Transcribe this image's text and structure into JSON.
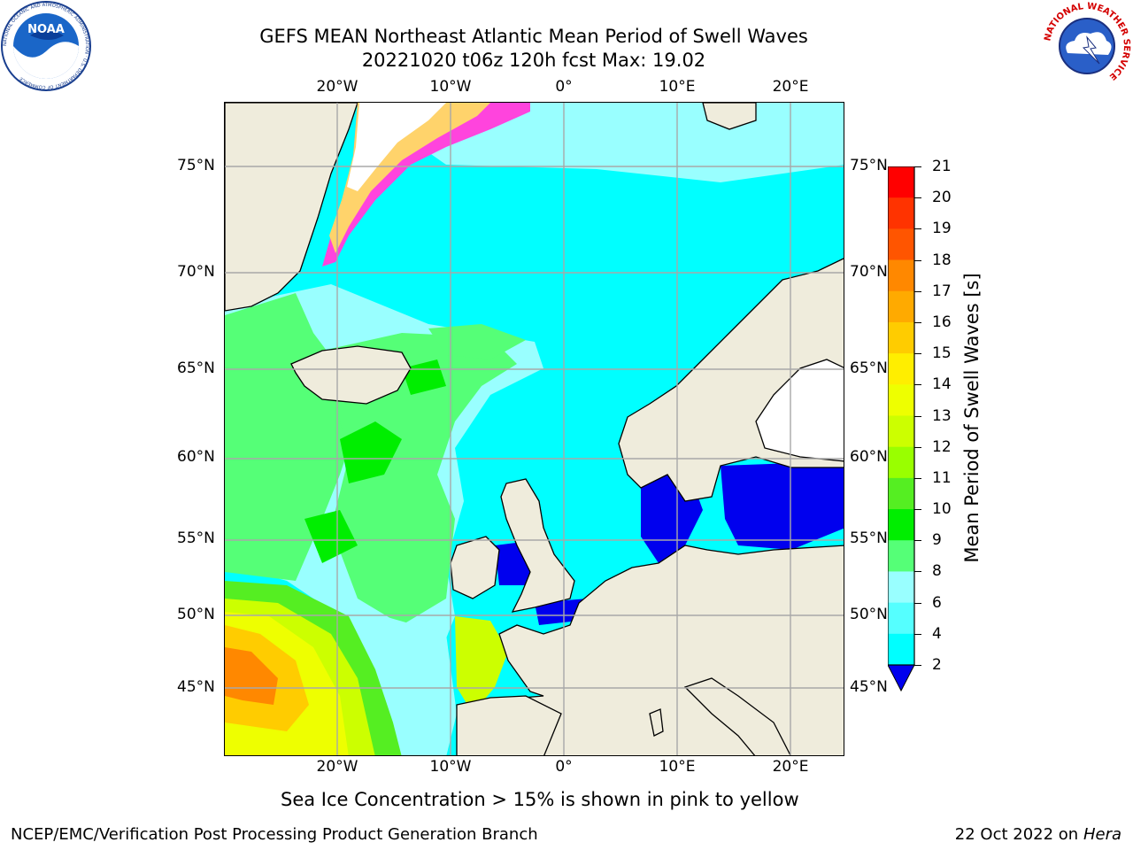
{
  "title": {
    "line1": "GEFS MEAN Northeast Atlantic Mean Period of Swell Waves",
    "line2": "20221020 t06z 120h fcst   Max: 19.02"
  },
  "map": {
    "lon_labels": [
      "20°W",
      "10°W",
      "0°",
      "10°E",
      "20°E"
    ],
    "lat_labels": [
      "75°N",
      "70°N",
      "65°N",
      "60°N",
      "55°N",
      "50°N",
      "45°N"
    ],
    "colors": {
      "land": "#efecdc",
      "ocean_base": "#00ffff",
      "ice_pink": "#ff44dd",
      "ice_yellow": "#ffd36b",
      "grid": "#a8a8a8"
    }
  },
  "colorbar": {
    "label": "Mean Period of Swell Waves [s]",
    "ticks": [
      "21",
      "20",
      "19",
      "18",
      "17",
      "16",
      "15",
      "14",
      "13",
      "12",
      "11",
      "10",
      "9",
      "8",
      "6",
      "4",
      "2"
    ],
    "colors": [
      "#ff0000",
      "#ff3300",
      "#ff5500",
      "#ff8800",
      "#ffaa00",
      "#ffcc00",
      "#ffee00",
      "#eeff00",
      "#ccff00",
      "#99ff00",
      "#55ee22",
      "#00ee00",
      "#55ff77",
      "#99ffff",
      "#55ffff",
      "#00ffff",
      "#0077ff",
      "#0000ee"
    ]
  },
  "caption": "Sea Ice Concentration > 15% is shown in pink to yellow",
  "footer": {
    "left": "NCEP/EMC/Verification Post Processing Product Generation Branch",
    "right_prefix": "22 Oct 2022 on ",
    "right_machine": "Hera"
  },
  "logos": {
    "left_text": "NOAA",
    "left_ring": "NATIONAL OCEANIC AND ATMOSPHERIC ADMINISTRATION · U.S. DEPARTMENT OF COMMERCE",
    "right_ring": "NATIONAL WEATHER SERVICE"
  }
}
